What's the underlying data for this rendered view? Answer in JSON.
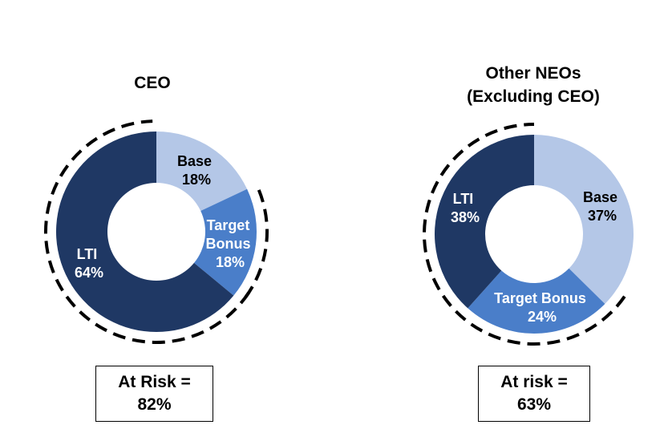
{
  "colors": {
    "base": "#b4c7e7",
    "target_bonus": "#4a7ec9",
    "lti": "#1f3864",
    "label_dark": "#000000",
    "label_light": "#ffffff",
    "dash": "#000000"
  },
  "chart_data": [
    {
      "type": "pie",
      "title": "CEO",
      "slices": [
        {
          "label": "Base",
          "value": 18,
          "value_text": "18%"
        },
        {
          "label": "Target Bonus",
          "value": 18,
          "value_text": "18%"
        },
        {
          "label": "LTI",
          "value": 64,
          "value_text": "64%"
        }
      ],
      "at_risk": {
        "line1": "At Risk =",
        "line2": "82%"
      }
    },
    {
      "type": "pie",
      "title_line1": "Other NEOs",
      "title_line2": "(Excluding CEO)",
      "slices": [
        {
          "label": "Base",
          "value": 37,
          "value_text": "37%"
        },
        {
          "label": "Target Bonus",
          "value": 24,
          "value_text": "24%"
        },
        {
          "label": "LTI",
          "value": 38,
          "value_text": "38%"
        }
      ],
      "at_risk": {
        "line1": "At risk =",
        "line2": "63%"
      }
    }
  ]
}
